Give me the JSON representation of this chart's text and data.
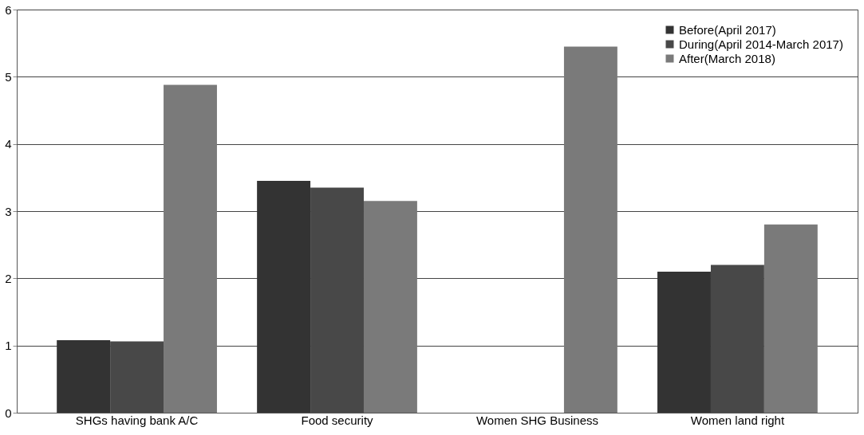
{
  "chart_data": {
    "type": "bar",
    "categories": [
      "SHGs having bank  A/C",
      "Food security",
      "Women SHG Business",
      "Women land right"
    ],
    "series": [
      {
        "name": "Before(April 2017)",
        "color": "#333333",
        "values": [
          1.08,
          3.45,
          null,
          2.1
        ]
      },
      {
        "name": "During(April 2014-March 2017)",
        "color": "#484848",
        "values": [
          1.06,
          3.35,
          null,
          2.2
        ]
      },
      {
        "name": "After(March 2018)",
        "color": "#7a7a7a",
        "values": [
          4.88,
          3.15,
          5.45,
          2.8
        ]
      }
    ],
    "ylim": [
      0,
      6
    ],
    "yticks": [
      0,
      1,
      2,
      3,
      4,
      5,
      6
    ],
    "grid": "y",
    "legend": "top right"
  }
}
